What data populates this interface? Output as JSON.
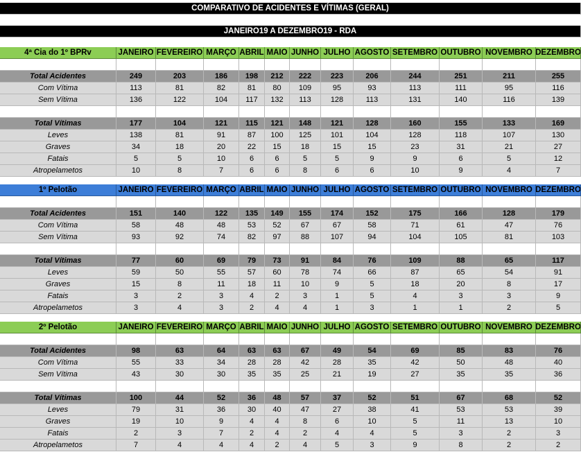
{
  "title": "COMPARATIVO DE ACIDENTES E VÍTIMAS (GERAL)",
  "period": "JANEIRO19 A DEZEMBRO19 - RDA",
  "months": [
    "JANEIRO",
    "FEVEREIRO",
    "MARÇO",
    "ABRIL",
    "MAIO",
    "JUNHO",
    "JULHO",
    "AGOSTO",
    "SETEMBRO",
    "OUTUBRO",
    "NOVEMBRO",
    "DEZEMBRO"
  ],
  "colors": {
    "green_header": "#8ccd55",
    "blue_header": "#3d7ed8",
    "total_row": "#999999",
    "sub_row": "#d9d9d9",
    "banner": "#000000"
  },
  "sections": [
    {
      "name": "4ª Cia do 1º BPRv",
      "accidents": {
        "total": {
          "label": "Total Acidentes",
          "values": [
            "249",
            "203",
            "186",
            "198",
            "212",
            "222",
            "223",
            "206",
            "244",
            "251",
            "211",
            "255"
          ]
        },
        "rows": [
          {
            "label": "Com Vítima",
            "values": [
              "113",
              "81",
              "82",
              "81",
              "80",
              "109",
              "95",
              "93",
              "113",
              "111",
              "95",
              "116"
            ]
          },
          {
            "label": "Sem Vítima",
            "values": [
              "136",
              "122",
              "104",
              "117",
              "132",
              "113",
              "128",
              "113",
              "131",
              "140",
              "116",
              "139"
            ]
          }
        ]
      },
      "victims": {
        "total": {
          "label": "Total Vítimas",
          "values": [
            "177",
            "104",
            "121",
            "115",
            "121",
            "148",
            "121",
            "128",
            "160",
            "155",
            "133",
            "169"
          ]
        },
        "rows": [
          {
            "label": "Leves",
            "values": [
              "138",
              "81",
              "91",
              "87",
              "100",
              "125",
              "101",
              "104",
              "128",
              "118",
              "107",
              "130"
            ]
          },
          {
            "label": "Graves",
            "values": [
              "34",
              "18",
              "20",
              "22",
              "15",
              "18",
              "15",
              "15",
              "23",
              "31",
              "21",
              "27"
            ]
          },
          {
            "label": "Fatais",
            "values": [
              "5",
              "5",
              "10",
              "6",
              "6",
              "5",
              "5",
              "9",
              "9",
              "6",
              "5",
              "12"
            ]
          },
          {
            "label": "Atropelametos",
            "values": [
              "10",
              "8",
              "7",
              "6",
              "6",
              "8",
              "6",
              "6",
              "10",
              "9",
              "4",
              "7"
            ]
          }
        ]
      }
    },
    {
      "name": "1º Pelotão",
      "accidents": {
        "total": {
          "label": "Total Acidentes",
          "values": [
            "151",
            "140",
            "122",
            "135",
            "149",
            "155",
            "174",
            "152",
            "175",
            "166",
            "128",
            "179"
          ]
        },
        "rows": [
          {
            "label": "Com Vítima",
            "values": [
              "58",
              "48",
              "48",
              "53",
              "52",
              "67",
              "67",
              "58",
              "71",
              "61",
              "47",
              "76"
            ]
          },
          {
            "label": "Sem Vítima",
            "values": [
              "93",
              "92",
              "74",
              "82",
              "97",
              "88",
              "107",
              "94",
              "104",
              "105",
              "81",
              "103"
            ]
          }
        ]
      },
      "victims": {
        "total": {
          "label": "Total Vítimas",
          "values": [
            "77",
            "60",
            "69",
            "79",
            "73",
            "91",
            "84",
            "76",
            "109",
            "88",
            "65",
            "117"
          ]
        },
        "rows": [
          {
            "label": "Leves",
            "values": [
              "59",
              "50",
              "55",
              "57",
              "60",
              "78",
              "74",
              "66",
              "87",
              "65",
              "54",
              "91"
            ]
          },
          {
            "label": "Graves",
            "values": [
              "15",
              "8",
              "11",
              "18",
              "11",
              "10",
              "9",
              "5",
              "18",
              "20",
              "8",
              "17"
            ]
          },
          {
            "label": "Fatais",
            "values": [
              "3",
              "2",
              "3",
              "4",
              "2",
              "3",
              "1",
              "5",
              "4",
              "3",
              "3",
              "9"
            ]
          },
          {
            "label": "Atropelametos",
            "values": [
              "3",
              "4",
              "3",
              "2",
              "4",
              "4",
              "1",
              "3",
              "1",
              "1",
              "2",
              "5"
            ]
          }
        ]
      }
    },
    {
      "name": "2º Pelotão",
      "accidents": {
        "total": {
          "label": "Total Acidentes",
          "values": [
            "98",
            "63",
            "64",
            "63",
            "63",
            "67",
            "49",
            "54",
            "69",
            "85",
            "83",
            "76"
          ]
        },
        "rows": [
          {
            "label": "Com Vítima",
            "values": [
              "55",
              "33",
              "34",
              "28",
              "28",
              "42",
              "28",
              "35",
              "42",
              "50",
              "48",
              "40"
            ]
          },
          {
            "label": "Sem Vítima",
            "values": [
              "43",
              "30",
              "30",
              "35",
              "35",
              "25",
              "21",
              "19",
              "27",
              "35",
              "35",
              "36"
            ]
          }
        ]
      },
      "victims": {
        "total": {
          "label": "Total Vítimas",
          "values": [
            "100",
            "44",
            "52",
            "36",
            "48",
            "57",
            "37",
            "52",
            "51",
            "67",
            "68",
            "52"
          ]
        },
        "rows": [
          {
            "label": "Leves",
            "values": [
              "79",
              "31",
              "36",
              "30",
              "40",
              "47",
              "27",
              "38",
              "41",
              "53",
              "53",
              "39"
            ]
          },
          {
            "label": "Graves",
            "values": [
              "19",
              "10",
              "9",
              "4",
              "4",
              "8",
              "6",
              "10",
              "5",
              "11",
              "13",
              "10"
            ]
          },
          {
            "label": "Fatais",
            "values": [
              "2",
              "3",
              "7",
              "2",
              "4",
              "2",
              "4",
              "4",
              "5",
              "3",
              "2",
              "3"
            ]
          },
          {
            "label": "Atropelametos",
            "values": [
              "7",
              "4",
              "4",
              "4",
              "2",
              "4",
              "5",
              "3",
              "9",
              "8",
              "2",
              "2"
            ]
          }
        ]
      }
    }
  ]
}
